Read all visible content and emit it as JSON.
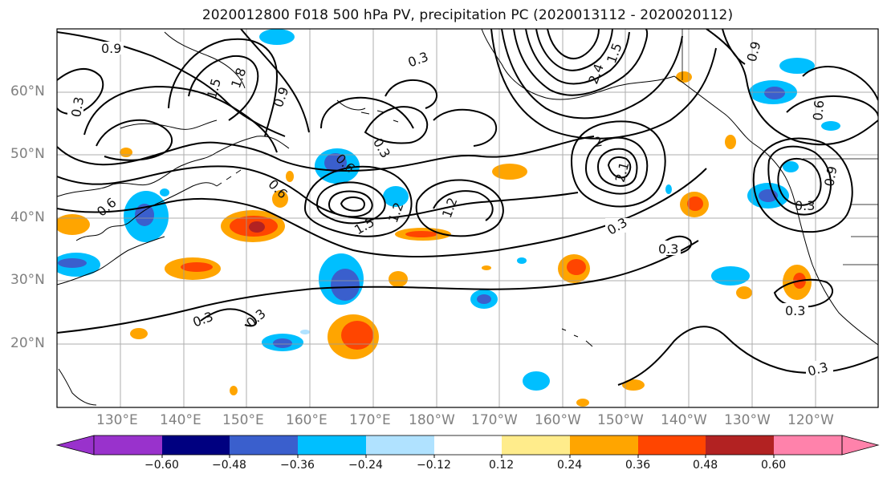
{
  "title": "2020012800 F018 500 hPa PV, precipitation PC (2020013112 - 2020020112)",
  "lat_labels": [
    "60°N",
    "50°N",
    "40°N",
    "30°N",
    "20°N"
  ],
  "lon_labels": [
    "130°E",
    "140°E",
    "150°E",
    "160°E",
    "170°E",
    "180°W",
    "170°W",
    "160°W",
    "150°W",
    "140°W",
    "130°W",
    "120°W"
  ],
  "contour_labels": [
    "0.9",
    "0.3",
    "1.5",
    "1.8",
    "0.9",
    "0.3",
    "0.3",
    "2.4",
    "1.5",
    "0.9",
    "0.6",
    "0.6",
    "0.6",
    "1.2",
    "1.5",
    "1.2",
    "2",
    "2.1",
    "0.3",
    "0.3",
    "0.3",
    "0.3",
    "0.3",
    "0.9",
    "0.6",
    "0.3",
    "0.3"
  ],
  "colorbar": {
    "ticks": [
      "−0.60",
      "−0.48",
      "−0.36",
      "−0.24",
      "−0.12",
      "0.12",
      "0.24",
      "0.36",
      "0.48",
      "0.60"
    ],
    "colors": [
      "#9932cc",
      "#000080",
      "#3a5fcd",
      "#00bfff",
      "#b0e2ff",
      "#ffffff",
      "#ffec8b",
      "#ffa500",
      "#ff4500",
      "#b22222",
      "#ff82ab"
    ]
  }
}
